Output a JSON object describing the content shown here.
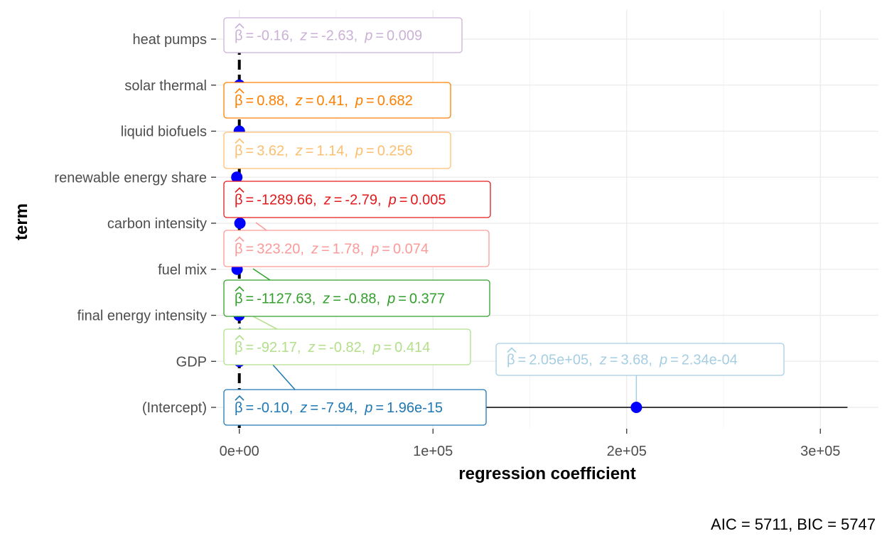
{
  "chart_data": {
    "type": "scatter",
    "subtype": "coefficient-plot",
    "xlabel": "regression coefficient",
    "ylabel": "term",
    "caption": "AIC = 5711, BIC = 5747",
    "xlim": [
      -12000,
      330000
    ],
    "x_ticks": [
      0,
      100000,
      200000,
      300000
    ],
    "x_tick_labels": [
      "0e+00",
      "1e+05",
      "2e+05",
      "3e+05"
    ],
    "reference_line_x": 0,
    "grid": true,
    "legend": "none",
    "point_color": "#0000ff",
    "terms": [
      {
        "term": "(Intercept)",
        "estimate": 205000,
        "ci_low": 96000,
        "ci_high": 314000,
        "color": "#a6cee3",
        "label": {
          "beta": "2.05e+05",
          "z": "3.68",
          "p": "2.34e-04"
        }
      },
      {
        "term": "GDP",
        "estimate": -0.1,
        "ci_low": -0.12,
        "ci_high": -0.07,
        "color": "#1f78b4",
        "label": {
          "beta": "-0.10",
          "z": "-7.94",
          "p": "1.96e-15"
        }
      },
      {
        "term": "final energy intensity",
        "estimate": -92.17,
        "ci_low": -312,
        "ci_high": 128,
        "color": "#b2df8a",
        "label": {
          "beta": "-92.17",
          "z": "-0.82",
          "p": "0.414"
        }
      },
      {
        "term": "fuel mix",
        "estimate": -1127.63,
        "ci_low": -3640,
        "ci_high": 1380,
        "color": "#33a02c",
        "label": {
          "beta": "-1127.63",
          "z": "-0.88",
          "p": "0.377"
        }
      },
      {
        "term": "carbon intensity",
        "estimate": 323.2,
        "ci_low": -33,
        "ci_high": 680,
        "color": "#fb9a99",
        "label": {
          "beta": "323.20",
          "z": "1.78",
          "p": "0.074"
        }
      },
      {
        "term": "renewable energy share",
        "estimate": -1289.66,
        "ci_low": -2195,
        "ci_high": -384,
        "color": "#e31a1c",
        "label": {
          "beta": "-1289.66",
          "z": "-2.79",
          "p": "0.005"
        }
      },
      {
        "term": "liquid biofuels",
        "estimate": 3.62,
        "ci_low": -2.6,
        "ci_high": 9.8,
        "color": "#fdbf6f",
        "label": {
          "beta": "3.62",
          "z": "1.14",
          "p": "0.256"
        }
      },
      {
        "term": "solar thermal",
        "estimate": 0.88,
        "ci_low": -3.3,
        "ci_high": 5.1,
        "color": "#ff7f00",
        "label": {
          "beta": "0.88",
          "z": "0.41",
          "p": "0.682"
        }
      },
      {
        "term": "heat pumps",
        "estimate": -0.16,
        "ci_low": -0.28,
        "ci_high": -0.04,
        "color": "#cab2d6",
        "label": {
          "beta": "-0.16",
          "z": "-2.63",
          "p": "0.009"
        }
      }
    ]
  }
}
